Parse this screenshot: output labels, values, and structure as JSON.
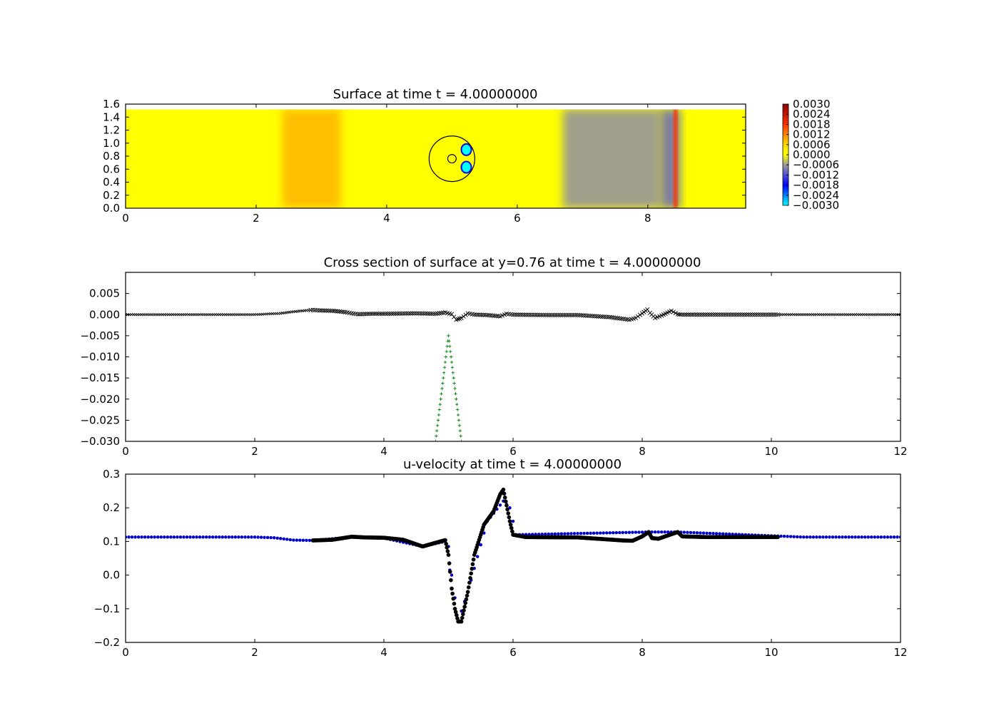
{
  "chart_data": [
    {
      "type": "heatmap",
      "title": "Surface at time t =     4.00000000",
      "xlabel": "",
      "ylabel": "",
      "xlim": [
        0,
        9.5
      ],
      "ylim": [
        0,
        1.6
      ],
      "xticks": [
        "0",
        "2",
        "4",
        "6",
        "8"
      ],
      "xtick_values": [
        0,
        2,
        4,
        6,
        8
      ],
      "yticks": [
        "0.0",
        "0.2",
        "0.4",
        "0.6",
        "0.8",
        "1.0",
        "1.2",
        "1.4",
        "1.6"
      ],
      "ytick_values": [
        0,
        0.2,
        0.4,
        0.6,
        0.8,
        1.0,
        1.2,
        1.4,
        1.6
      ],
      "domain_top": 1.52,
      "colorbar": {
        "min": -0.003,
        "max": 0.003,
        "ticks": [
          "0.0030",
          "0.0024",
          "0.0018",
          "0.0012",
          "0.0006",
          "0.0000",
          "−0.0006",
          "−0.0012",
          "−0.0018",
          "−0.0024",
          "−0.0030"
        ],
        "tick_values": [
          0.003,
          0.0024,
          0.0018,
          0.0012,
          0.0006,
          0,
          -0.0006,
          -0.0012,
          -0.0018,
          -0.0024,
          -0.003
        ]
      },
      "features": [
        {
          "kind": "band",
          "x0": 2.4,
          "x1": 3.3,
          "value": 0.0009
        },
        {
          "kind": "band",
          "x0": 6.7,
          "x1": 8.2,
          "value": -0.0007
        },
        {
          "kind": "band",
          "x0": 8.2,
          "x1": 8.5,
          "value": -0.001
        },
        {
          "kind": "front",
          "x": 8.42,
          "value": 0.0018
        },
        {
          "kind": "blob",
          "x": 5.22,
          "y": 0.9,
          "value": -0.003
        },
        {
          "kind": "blob",
          "x": 5.22,
          "y": 0.63,
          "value": -0.003
        }
      ],
      "circles": [
        {
          "cx": 5.0,
          "cy": 0.76,
          "r": 0.35
        },
        {
          "cx": 5.0,
          "cy": 0.76,
          "r": 0.065
        }
      ]
    },
    {
      "type": "scatter",
      "title": "Cross section of surface at y=0.76 at time t =     4.00000000",
      "xlabel": "",
      "ylabel": "",
      "xlim": [
        0,
        12
      ],
      "ylim": [
        -0.03,
        0.01
      ],
      "xticks": [
        "0",
        "2",
        "4",
        "6",
        "8",
        "10",
        "12"
      ],
      "xtick_values": [
        0,
        2,
        4,
        6,
        8,
        10,
        12
      ],
      "yticks": [
        "0.005",
        "0.000",
        "−0.005",
        "−0.010",
        "−0.015",
        "−0.020",
        "−0.025",
        "−0.030"
      ],
      "ytick_values": [
        0.005,
        0,
        -0.005,
        -0.01,
        -0.015,
        -0.02,
        -0.025,
        -0.03
      ],
      "series": [
        {
          "color": "#000000",
          "marker": "x",
          "x": [
            0,
            1.0,
            2.0,
            2.4,
            2.6,
            2.8,
            2.9,
            3.0,
            3.2,
            3.4,
            3.5,
            3.6,
            3.8,
            4.0,
            4.5,
            4.8,
            4.95,
            5.05,
            5.12,
            5.2,
            5.3,
            5.4,
            5.6,
            5.8,
            5.9,
            6.0,
            6.5,
            7.0,
            7.5,
            7.8,
            7.9,
            8.0,
            8.08,
            8.12,
            8.2,
            8.3,
            8.45,
            8.55,
            8.6,
            8.8,
            10.1,
            11.0,
            12.0
          ],
          "y": [
            0,
            0,
            0,
            0.0003,
            0.0007,
            0.001,
            0.0011,
            0.001,
            0.0009,
            0.0006,
            0.0003,
            0.0001,
            0.0002,
            0.0002,
            0.0003,
            0.0002,
            0.0005,
            0.0001,
            -0.0012,
            -0.0008,
            0.0003,
            0.0,
            -0.0001,
            -0.0004,
            0.0002,
            0.0,
            -0.0001,
            -0.0001,
            -0.0006,
            -0.0012,
            -0.0008,
            0.0003,
            0.0012,
            0.0004,
            -0.0008,
            -0.0002,
            0.0009,
            0.0001,
            0.0,
            0.0,
            0.0,
            0.0,
            0.0
          ]
        },
        {
          "color": "#008000",
          "marker": "+",
          "x": [
            4.8,
            4.9,
            5.0,
            5.1,
            5.2
          ],
          "y": [
            -0.03,
            -0.0175,
            -0.005,
            -0.0175,
            -0.03
          ]
        }
      ]
    },
    {
      "type": "scatter",
      "title": "u-velocity at time t =     4.00000000",
      "xlabel": "",
      "ylabel": "",
      "xlim": [
        0,
        12
      ],
      "ylim": [
        -0.2,
        0.3
      ],
      "xticks": [
        "0",
        "2",
        "4",
        "6",
        "8",
        "10",
        "12"
      ],
      "xtick_values": [
        0,
        2,
        4,
        6,
        8,
        10,
        12
      ],
      "yticks": [
        "0.3",
        "0.2",
        "0.1",
        "0.0",
        "−0.1",
        "−0.2"
      ],
      "ytick_values": [
        0.3,
        0.2,
        0.1,
        0.0,
        -0.1,
        -0.2
      ],
      "series": [
        {
          "color": "#000000",
          "marker": "o",
          "x": [
            2.9,
            3.2,
            3.5,
            3.7,
            4.0,
            4.3,
            4.6,
            4.8,
            4.95,
            5.0,
            5.05,
            5.1,
            5.15,
            5.2,
            5.3,
            5.4,
            5.55,
            5.7,
            5.8,
            5.85,
            5.95,
            6.0,
            6.2,
            7.0,
            7.7,
            7.85,
            8.0,
            8.1,
            8.15,
            8.25,
            8.4,
            8.55,
            8.62,
            9.0,
            10.1
          ],
          "y": [
            0.103,
            0.105,
            0.114,
            0.112,
            0.111,
            0.105,
            0.085,
            0.096,
            0.104,
            0.06,
            -0.04,
            -0.1,
            -0.138,
            -0.138,
            -0.05,
            0.06,
            0.15,
            0.19,
            0.24,
            0.254,
            0.16,
            0.12,
            0.113,
            0.112,
            0.103,
            0.102,
            0.115,
            0.128,
            0.11,
            0.108,
            0.118,
            0.128,
            0.115,
            0.113,
            0.113
          ]
        },
        {
          "color": "#0000cc",
          "marker": "o",
          "x": [
            0,
            1.0,
            2.0,
            2.3,
            2.6,
            2.9,
            3.5,
            4.0,
            4.6,
            4.95,
            5.0,
            5.02,
            5.05,
            5.15,
            5.3,
            5.6,
            5.85,
            5.95,
            6.05,
            8.1,
            8.55,
            10.5,
            12.0
          ],
          "y": [
            0.113,
            0.113,
            0.113,
            0.111,
            0.104,
            0.103,
            0.113,
            0.11,
            0.085,
            0.1,
            0.085,
            0.015,
            0.0,
            -0.135,
            -0.05,
            0.16,
            0.22,
            0.2,
            0.12,
            0.128,
            0.128,
            0.113,
            0.113
          ]
        }
      ]
    }
  ]
}
